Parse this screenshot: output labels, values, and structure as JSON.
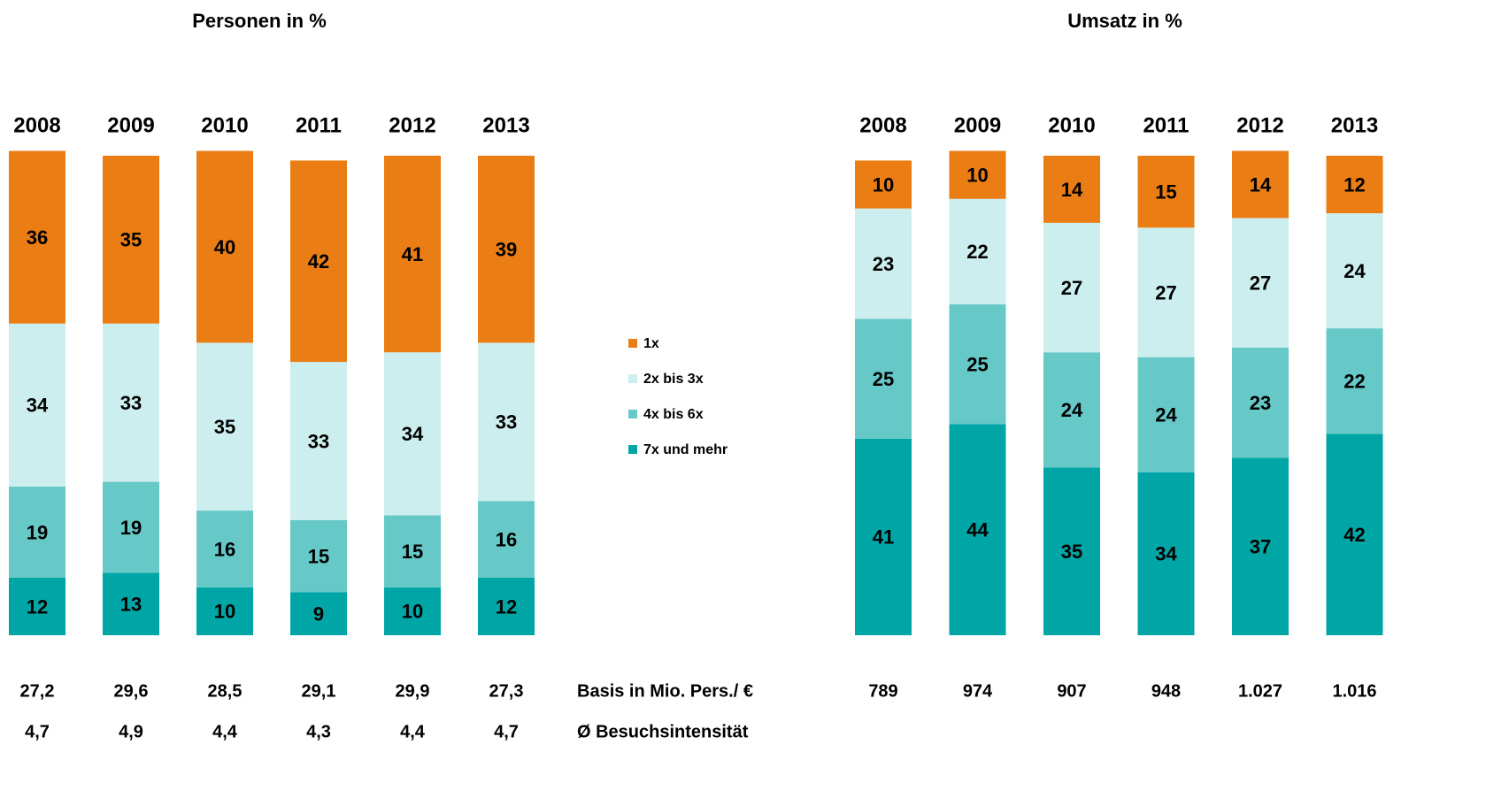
{
  "chart_data": [
    {
      "type": "bar",
      "stacked": true,
      "title": "Personen in %",
      "categories": [
        "2008",
        "2009",
        "2010",
        "2011",
        "2012",
        "2013"
      ],
      "ylim": [
        0,
        100
      ],
      "series": [
        {
          "name": "1x",
          "color": "#ea7d14",
          "values": [
            36,
            35,
            40,
            42,
            41,
            39
          ]
        },
        {
          "name": "2x bis 3x",
          "color": "#cdeeee",
          "values": [
            34,
            33,
            35,
            33,
            34,
            33
          ]
        },
        {
          "name": "4x bis 6x",
          "color": "#67c8c8",
          "values": [
            19,
            19,
            16,
            15,
            15,
            16
          ]
        },
        {
          "name": "7x und mehr",
          "color": "#00a6a6",
          "values": [
            12,
            13,
            10,
            9,
            10,
            12
          ]
        }
      ],
      "basis": {
        "values": [
          27.2,
          29.6,
          28.5,
          29.1,
          29.9,
          27.3
        ],
        "value_labels": [
          "27,2",
          "29,6",
          "28,5",
          "29,1",
          "29,9",
          "27,3"
        ]
      },
      "intensity": {
        "values": [
          4.7,
          4.9,
          4.4,
          4.3,
          4.4,
          4.7
        ],
        "value_labels": [
          "4,7",
          "4,9",
          "4,4",
          "4,3",
          "4,4",
          "4,7"
        ]
      }
    },
    {
      "type": "bar",
      "stacked": true,
      "title": "Umsatz in %",
      "categories": [
        "2008",
        "2009",
        "2010",
        "2011",
        "2012",
        "2013"
      ],
      "ylim": [
        0,
        100
      ],
      "series": [
        {
          "color": "#ea7d14",
          "values": [
            10,
            10,
            14,
            15,
            14,
            12
          ]
        },
        {
          "color": "#cdeeee",
          "values": [
            23,
            22,
            27,
            27,
            27,
            24
          ]
        },
        {
          "color": "#67c8c8",
          "values": [
            25,
            25,
            24,
            24,
            23,
            22
          ]
        },
        {
          "color": "#00a6a6",
          "values": [
            41,
            44,
            35,
            34,
            37,
            42
          ]
        }
      ],
      "basis": {
        "values": [
          789,
          974,
          907,
          948,
          1027,
          1016
        ],
        "value_labels": [
          "789",
          "974",
          "907",
          "948",
          "1.027",
          "1.016"
        ]
      }
    }
  ],
  "row_labels": [
    "Basis in Mio. Pers./ €",
    "Ø Besuchsintensität"
  ]
}
